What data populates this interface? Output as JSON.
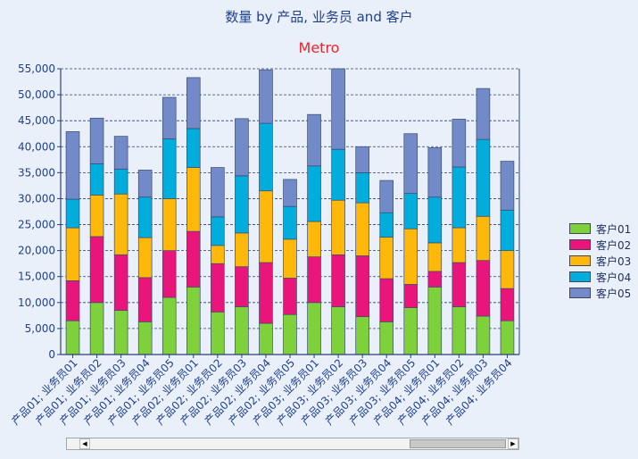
{
  "chart_data": {
    "type": "bar",
    "stacked": true,
    "title": "数量 by 产品, 业务员 and 客户",
    "subtitle": "Metro",
    "xlabel": "",
    "ylabel": "",
    "ylim": [
      0,
      55000
    ],
    "yticks": [
      "0",
      "5,000",
      "10,000",
      "15,000",
      "20,000",
      "25,000",
      "30,000",
      "35,000",
      "40,000",
      "45,000",
      "50,000",
      "55,000"
    ],
    "grid": true,
    "legend_position": "right",
    "categories": [
      "产品01; 业务员01",
      "产品01; 业务员02",
      "产品01; 业务员03",
      "产品01; 业务员04",
      "产品01; 业务员05",
      "产品02; 业务员01",
      "产品02; 业务员02",
      "产品02; 业务员03",
      "产品02; 业务员04",
      "产品02; 业务员05",
      "产品03; 业务员01",
      "产品03; 业务员02",
      "产品03; 业务员03",
      "产品03; 业务员04",
      "产品03; 业务员05",
      "产品04; 业务员01",
      "产品04; 业务员02",
      "产品04; 业务员03",
      "产品04; 业务员04"
    ],
    "series": [
      {
        "name": "客户01",
        "color": "#7fd13b",
        "values": [
          6500,
          10000,
          8500,
          6300,
          11000,
          13000,
          8200,
          9200,
          6000,
          7700,
          10000,
          9200,
          7300,
          6300,
          9000,
          13000,
          9200,
          7400,
          6500
        ]
      },
      {
        "name": "客户02",
        "color": "#ea157a",
        "values": [
          7700,
          12700,
          10700,
          8500,
          9000,
          10700,
          9300,
          7700,
          11700,
          7000,
          8800,
          10000,
          11700,
          8300,
          4500,
          3000,
          8500,
          10700,
          6200
        ]
      },
      {
        "name": "客户03",
        "color": "#feb80a",
        "values": [
          10200,
          8000,
          11700,
          7700,
          10000,
          12300,
          3500,
          6500,
          13800,
          7500,
          6800,
          10500,
          10200,
          8000,
          10700,
          5500,
          6700,
          8500,
          7300
        ]
      },
      {
        "name": "客户04",
        "color": "#00addc",
        "values": [
          5500,
          6000,
          4800,
          7800,
          11500,
          7500,
          5500,
          11000,
          13000,
          6300,
          10700,
          9800,
          5800,
          4700,
          6800,
          8800,
          11700,
          14800,
          7800
        ]
      },
      {
        "name": "客户05",
        "color": "#738ac8",
        "values": [
          13000,
          8800,
          6300,
          5200,
          8000,
          9800,
          9500,
          11000,
          10300,
          5200,
          9900,
          15500,
          5000,
          6200,
          11500,
          9500,
          9200,
          9800,
          9400
        ]
      }
    ]
  },
  "scrollbar": {
    "left_arrow": "◀",
    "right_arrow": "▶"
  }
}
